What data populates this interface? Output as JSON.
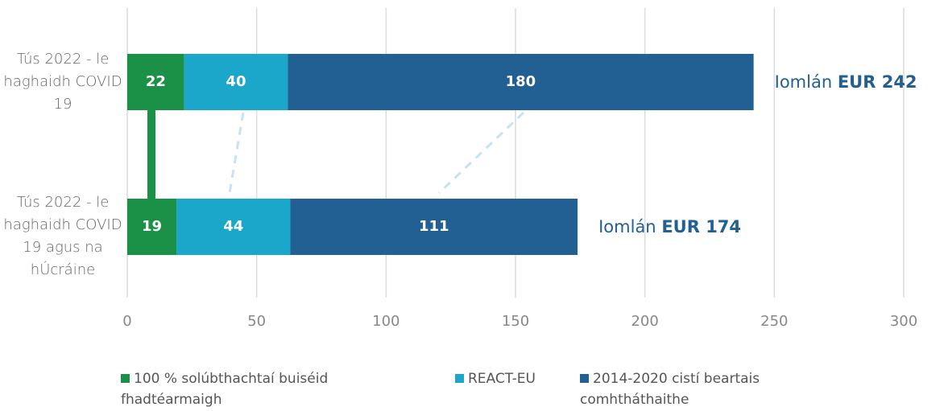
{
  "chart_data": {
    "type": "stacked-bar-horizontal",
    "categories": [
      "Tús 2022 - le haghaidh COVID 19",
      "Tús 2022 - le haghaidh COVID 19 agus na hÚcráine"
    ],
    "series": [
      {
        "name": "100 % solúbthachtaí buiséid fhadtéarmaigh",
        "color": "#1a9147",
        "values": [
          22,
          19
        ]
      },
      {
        "name": "REACT-EU",
        "color": "#1ba7c9",
        "values": [
          40,
          44
        ]
      },
      {
        "name": "2014-2020 cistí beartais comhtháthaithe",
        "color": "#225f92",
        "values": [
          180,
          111
        ]
      }
    ],
    "annotations": [
      {
        "text": "Iomlán",
        "bold": "EUR 242"
      },
      {
        "text": "Iomlán",
        "bold": "EUR 174"
      }
    ],
    "xlim": [
      0,
      300
    ],
    "xticks": [
      0,
      50,
      100,
      150,
      200,
      250,
      300
    ],
    "grid": true,
    "legend": "bottom"
  }
}
